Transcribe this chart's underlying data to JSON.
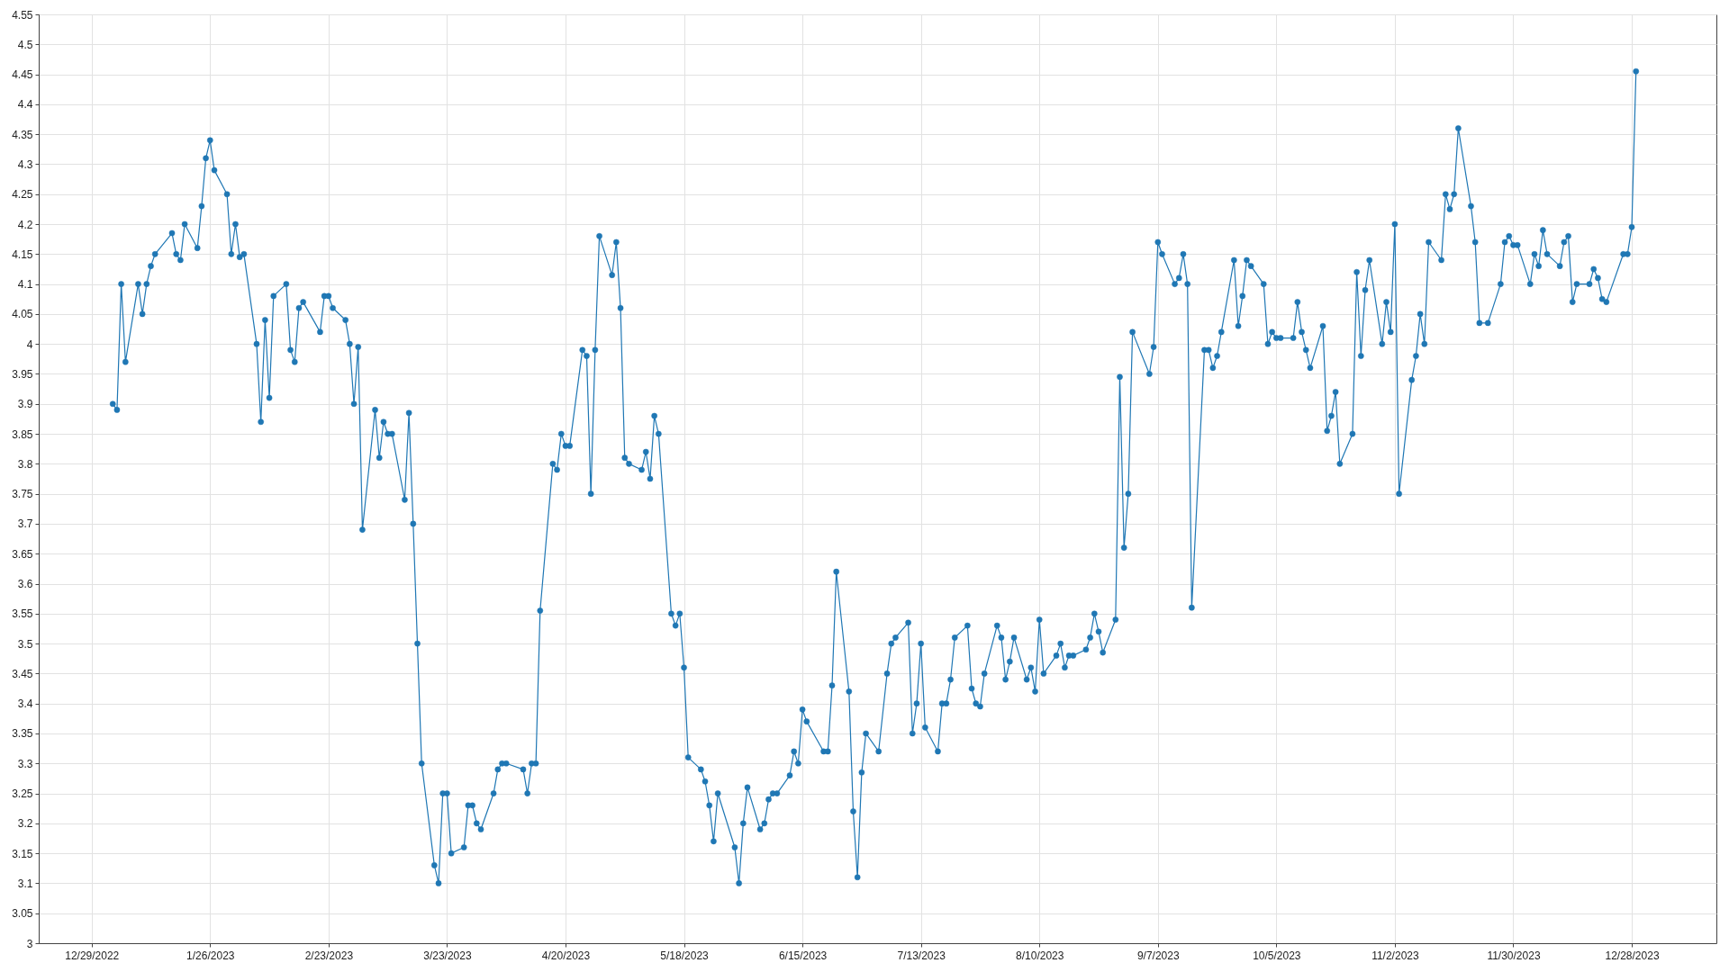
{
  "chart_data": {
    "type": "line",
    "x": [
      "2023-01-03",
      "2023-01-04",
      "2023-01-05",
      "2023-01-06",
      "2023-01-09",
      "2023-01-10",
      "2023-01-11",
      "2023-01-12",
      "2023-01-13",
      "2023-01-17",
      "2023-01-18",
      "2023-01-19",
      "2023-01-20",
      "2023-01-23",
      "2023-01-24",
      "2023-01-25",
      "2023-01-26",
      "2023-01-27",
      "2023-01-30",
      "2023-01-31",
      "2023-02-01",
      "2023-02-02",
      "2023-02-03",
      "2023-02-06",
      "2023-02-07",
      "2023-02-08",
      "2023-02-09",
      "2023-02-10",
      "2023-02-13",
      "2023-02-14",
      "2023-02-15",
      "2023-02-16",
      "2023-02-17",
      "2023-02-21",
      "2023-02-22",
      "2023-02-23",
      "2023-02-24",
      "2023-02-27",
      "2023-02-28",
      "2023-03-01",
      "2023-03-02",
      "2023-03-03",
      "2023-03-06",
      "2023-03-07",
      "2023-03-08",
      "2023-03-09",
      "2023-03-10",
      "2023-03-13",
      "2023-03-14",
      "2023-03-15",
      "2023-03-16",
      "2023-03-17",
      "2023-03-20",
      "2023-03-21",
      "2023-03-22",
      "2023-03-23",
      "2023-03-24",
      "2023-03-27",
      "2023-03-28",
      "2023-03-29",
      "2023-03-30",
      "2023-03-31",
      "2023-04-03",
      "2023-04-04",
      "2023-04-05",
      "2023-04-06",
      "2023-04-10",
      "2023-04-11",
      "2023-04-12",
      "2023-04-13",
      "2023-04-14",
      "2023-04-17",
      "2023-04-18",
      "2023-04-19",
      "2023-04-20",
      "2023-04-21",
      "2023-04-24",
      "2023-04-25",
      "2023-04-26",
      "2023-04-27",
      "2023-04-28",
      "2023-05-01",
      "2023-05-02",
      "2023-05-03",
      "2023-05-04",
      "2023-05-05",
      "2023-05-08",
      "2023-05-09",
      "2023-05-10",
      "2023-05-11",
      "2023-05-12",
      "2023-05-15",
      "2023-05-16",
      "2023-05-17",
      "2023-05-18",
      "2023-05-19",
      "2023-05-22",
      "2023-05-23",
      "2023-05-24",
      "2023-05-25",
      "2023-05-26",
      "2023-05-30",
      "2023-05-31",
      "2023-06-01",
      "2023-06-02",
      "2023-06-05",
      "2023-06-06",
      "2023-06-07",
      "2023-06-08",
      "2023-06-09",
      "2023-06-12",
      "2023-06-13",
      "2023-06-14",
      "2023-06-15",
      "2023-06-16",
      "2023-06-20",
      "2023-06-21",
      "2023-06-22",
      "2023-06-23",
      "2023-06-26",
      "2023-06-27",
      "2023-06-28",
      "2023-06-29",
      "2023-06-30",
      "2023-07-03",
      "2023-07-05",
      "2023-07-06",
      "2023-07-07",
      "2023-07-10",
      "2023-07-11",
      "2023-07-12",
      "2023-07-13",
      "2023-07-14",
      "2023-07-17",
      "2023-07-18",
      "2023-07-19",
      "2023-07-20",
      "2023-07-21",
      "2023-07-24",
      "2023-07-25",
      "2023-07-26",
      "2023-07-27",
      "2023-07-28",
      "2023-07-31",
      "2023-08-01",
      "2023-08-02",
      "2023-08-03",
      "2023-08-04",
      "2023-08-07",
      "2023-08-08",
      "2023-08-09",
      "2023-08-10",
      "2023-08-11",
      "2023-08-14",
      "2023-08-15",
      "2023-08-16",
      "2023-08-17",
      "2023-08-18",
      "2023-08-21",
      "2023-08-22",
      "2023-08-23",
      "2023-08-24",
      "2023-08-25",
      "2023-08-28",
      "2023-08-29",
      "2023-08-30",
      "2023-08-31",
      "2023-09-01",
      "2023-09-05",
      "2023-09-06",
      "2023-09-07",
      "2023-09-08",
      "2023-09-11",
      "2023-09-12",
      "2023-09-13",
      "2023-09-14",
      "2023-09-15",
      "2023-09-18",
      "2023-09-19",
      "2023-09-20",
      "2023-09-21",
      "2023-09-22",
      "2023-09-25",
      "2023-09-26",
      "2023-09-27",
      "2023-09-28",
      "2023-09-29",
      "2023-10-02",
      "2023-10-03",
      "2023-10-04",
      "2023-10-05",
      "2023-10-06",
      "2023-10-09",
      "2023-10-10",
      "2023-10-11",
      "2023-10-12",
      "2023-10-13",
      "2023-10-16",
      "2023-10-17",
      "2023-10-18",
      "2023-10-19",
      "2023-10-20",
      "2023-10-23",
      "2023-10-24",
      "2023-10-25",
      "2023-10-26",
      "2023-10-27",
      "2023-10-30",
      "2023-10-31",
      "2023-11-01",
      "2023-11-02",
      "2023-11-03",
      "2023-11-06",
      "2023-11-07",
      "2023-11-08",
      "2023-11-09",
      "2023-11-10",
      "2023-11-13",
      "2023-11-14",
      "2023-11-15",
      "2023-11-16",
      "2023-11-17",
      "2023-11-20",
      "2023-11-21",
      "2023-11-22",
      "2023-11-24",
      "2023-11-27",
      "2023-11-28",
      "2023-11-29",
      "2023-11-30",
      "2023-12-01",
      "2023-12-04",
      "2023-12-05",
      "2023-12-06",
      "2023-12-07",
      "2023-12-08",
      "2023-12-11",
      "2023-12-12",
      "2023-12-13",
      "2023-12-14",
      "2023-12-15",
      "2023-12-18",
      "2023-12-19",
      "2023-12-20",
      "2023-12-21",
      "2023-12-22",
      "2023-12-26",
      "2023-12-27",
      "2023-12-28",
      "2023-12-29"
    ],
    "series": [
      {
        "color": "#1f77b4",
        "values": [
          3.9,
          3.89,
          4.1,
          3.97,
          4.1,
          4.05,
          4.1,
          4.13,
          4.15,
          4.185,
          4.15,
          4.14,
          4.2,
          4.16,
          4.23,
          4.31,
          4.34,
          4.29,
          4.25,
          4.15,
          4.2,
          4.145,
          4.15,
          4.0,
          3.87,
          4.04,
          3.91,
          4.08,
          4.1,
          3.99,
          3.97,
          4.06,
          4.07,
          4.02,
          4.08,
          4.08,
          4.06,
          4.04,
          4.0,
          3.9,
          3.995,
          3.69,
          3.89,
          3.81,
          3.87,
          3.85,
          3.85,
          3.74,
          3.885,
          3.7,
          3.5,
          3.3,
          3.13,
          3.1,
          3.25,
          3.25,
          3.15,
          3.16,
          3.23,
          3.23,
          3.2,
          3.19,
          3.25,
          3.29,
          3.3,
          3.3,
          3.29,
          3.25,
          3.3,
          3.3,
          3.555,
          3.8,
          3.79,
          3.85,
          3.83,
          3.83,
          3.99,
          3.98,
          3.75,
          3.99,
          4.18,
          4.115,
          4.17,
          4.06,
          3.81,
          3.8,
          3.79,
          3.82,
          3.775,
          3.88,
          3.85,
          3.55,
          3.53,
          3.55,
          3.46,
          3.31,
          3.29,
          3.27,
          3.23,
          3.17,
          3.25,
          3.16,
          3.1,
          3.2,
          3.26,
          3.19,
          3.2,
          3.24,
          3.25,
          3.25,
          3.28,
          3.32,
          3.3,
          3.39,
          3.37,
          3.32,
          3.32,
          3.43,
          3.62,
          3.42,
          3.22,
          3.11,
          3.285,
          3.35,
          3.32,
          3.45,
          3.5,
          3.51,
          3.535,
          3.35,
          3.4,
          3.5,
          3.36,
          3.32,
          3.4,
          3.4,
          3.44,
          3.51,
          3.53,
          3.425,
          3.4,
          3.395,
          3.45,
          3.53,
          3.51,
          3.44,
          3.47,
          3.51,
          3.44,
          3.46,
          3.42,
          3.54,
          3.45,
          3.48,
          3.5,
          3.46,
          3.48,
          3.48,
          3.49,
          3.51,
          3.55,
          3.52,
          3.485,
          3.54,
          3.945,
          3.66,
          3.75,
          4.02,
          3.95,
          3.995,
          4.17,
          4.15,
          4.1,
          4.11,
          4.15,
          4.1,
          3.56,
          3.99,
          3.99,
          3.96,
          3.98,
          4.02,
          4.14,
          4.03,
          4.08,
          4.14,
          4.13,
          4.1,
          4.0,
          4.02,
          4.01,
          4.01,
          4.01,
          4.07,
          4.02,
          3.99,
          3.96,
          4.03,
          3.855,
          3.88,
          3.92,
          3.8,
          3.85,
          4.12,
          3.98,
          4.09,
          4.14,
          4.0,
          4.07,
          4.02,
          4.2,
          3.75,
          3.94,
          3.98,
          4.05,
          4.0,
          4.17,
          4.14,
          4.25,
          4.225,
          4.25,
          4.36,
          4.23,
          4.17,
          4.035,
          4.035,
          4.1,
          4.17,
          4.18,
          4.165,
          4.165,
          4.1,
          4.15,
          4.13,
          4.19,
          4.15,
          4.13,
          4.17,
          4.18,
          4.07,
          4.1,
          4.1,
          4.125,
          4.11,
          4.075,
          4.07,
          4.15,
          4.15,
          4.195,
          4.455
        ]
      }
    ],
    "xlim": [
      "2022-12-16T12:00",
      "2024-01-17"
    ],
    "xticks": [
      {
        "value": "2022-12-29",
        "label": "12/29/2022"
      },
      {
        "value": "2023-01-26",
        "label": "1/26/2023"
      },
      {
        "value": "2023-02-23",
        "label": "2/23/2023"
      },
      {
        "value": "2023-03-23",
        "label": "3/23/2023"
      },
      {
        "value": "2023-04-20",
        "label": "4/20/2023"
      },
      {
        "value": "2023-05-18",
        "label": "5/18/2023"
      },
      {
        "value": "2023-06-15",
        "label": "6/15/2023"
      },
      {
        "value": "2023-07-13",
        "label": "7/13/2023"
      },
      {
        "value": "2023-08-10",
        "label": "8/10/2023"
      },
      {
        "value": "2023-09-07",
        "label": "9/7/2023"
      },
      {
        "value": "2023-10-05",
        "label": "10/5/2023"
      },
      {
        "value": "2023-11-02",
        "label": "11/2/2023"
      },
      {
        "value": "2023-11-30",
        "label": "11/30/2023"
      },
      {
        "value": "2023-12-28",
        "label": "12/28/2023"
      }
    ],
    "ylim": [
      3,
      4.55
    ],
    "yticks": [
      3,
      3.05,
      3.1,
      3.15,
      3.2,
      3.25,
      3.3,
      3.35,
      3.4,
      3.45,
      3.5,
      3.55,
      3.6,
      3.65,
      3.7,
      3.75,
      3.8,
      3.85,
      3.9,
      3.95,
      4,
      4.05,
      4.1,
      4.15,
      4.2,
      4.25,
      4.3,
      4.35,
      4.4,
      4.45,
      4.5,
      4.55
    ],
    "grid": true,
    "marker": "circle",
    "line_style": "solid"
  }
}
